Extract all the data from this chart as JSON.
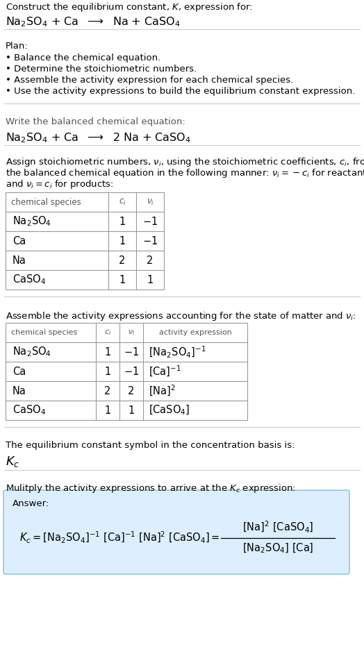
{
  "title_line1": "Construct the equilibrium constant, $K$, expression for:",
  "title_line2": "$\\mathrm{Na_2SO_4}$ + Ca  $\\longrightarrow$  Na + $\\mathrm{CaSO_4}$",
  "plan_header": "Plan:",
  "plan_items": [
    "• Balance the chemical equation.",
    "• Determine the stoichiometric numbers.",
    "• Assemble the activity expression for each chemical species.",
    "• Use the activity expressions to build the equilibrium constant expression."
  ],
  "balanced_header": "Write the balanced chemical equation:",
  "balanced_eq": "$\\mathrm{Na_2SO_4}$ + Ca  $\\longrightarrow$  2 Na + $\\mathrm{CaSO_4}$",
  "stoich_lines": [
    "Assign stoichiometric numbers, $\\nu_i$, using the stoichiometric coefficients, $c_i$, from",
    "the balanced chemical equation in the following manner: $\\nu_i = -c_i$ for reactants",
    "and $\\nu_i = c_i$ for products:"
  ],
  "table1_headers": [
    "chemical species",
    "$c_i$",
    "$\\nu_i$"
  ],
  "table1_rows": [
    [
      "$\\mathrm{Na_2SO_4}$",
      "1",
      "$-1$"
    ],
    [
      "Ca",
      "1",
      "$-1$"
    ],
    [
      "Na",
      "2",
      "2"
    ],
    [
      "$\\mathrm{CaSO_4}$",
      "1",
      "1"
    ]
  ],
  "activity_header": "Assemble the activity expressions accounting for the state of matter and $\\nu_i$:",
  "table2_headers": [
    "chemical species",
    "$c_i$",
    "$\\nu_i$",
    "activity expression"
  ],
  "table2_rows": [
    [
      "$\\mathrm{Na_2SO_4}$",
      "1",
      "$-1$",
      "$[\\mathrm{Na_2SO_4}]^{-1}$"
    ],
    [
      "Ca",
      "1",
      "$-1$",
      "$[\\mathrm{Ca}]^{-1}$"
    ],
    [
      "Na",
      "2",
      "2",
      "$[\\mathrm{Na}]^{2}$"
    ],
    [
      "$\\mathrm{CaSO_4}$",
      "1",
      "1",
      "$[\\mathrm{CaSO_4}]$"
    ]
  ],
  "kc_header": "The equilibrium constant symbol in the concentration basis is:",
  "kc_symbol": "$K_c$",
  "multiply_header": "Mulitply the activity expressions to arrive at the $K_c$ expression:",
  "answer_label": "Answer:",
  "bg_color": "#ffffff",
  "answer_box_color": "#ddeeff",
  "answer_box_border": "#88bbdd",
  "table_border_color": "#999999",
  "text_color": "#000000",
  "gray_text": "#555555",
  "fs": 10.5,
  "fs_small": 9.5
}
